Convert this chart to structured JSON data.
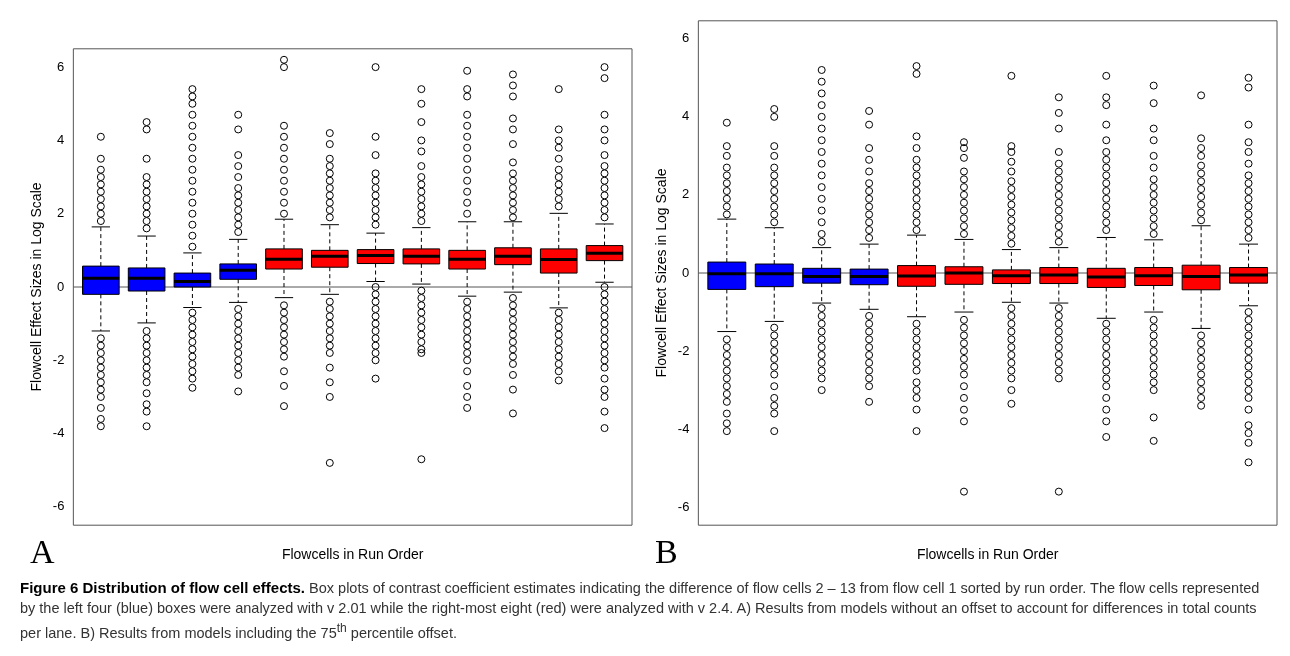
{
  "chart_data": [
    {
      "type": "box",
      "xlabel": "Flowcells in Run Order",
      "ylabel": "Flowcell Effect Sizes in Log Scale",
      "categories": [
        null,
        null,
        null,
        null,
        null,
        null,
        null,
        null,
        null,
        null,
        null,
        null
      ],
      "colors": [
        "#0000ff",
        "#0000ff",
        "#0000ff",
        "#0000ff",
        "#ff0000",
        "#ff0000",
        "#ff0000",
        "#ff0000",
        "#ff0000",
        "#ff0000",
        "#ff0000",
        "#ff0000"
      ],
      "boxes": [
        {
          "low": -1.2,
          "q1": -0.2,
          "median": 0.24,
          "q3": 0.57,
          "high": 1.64,
          "outliers": [
            1.8,
            2.0,
            2.2,
            2.4,
            2.6,
            2.8,
            3.0,
            3.2,
            3.5,
            4.1,
            -1.4,
            -1.6,
            -1.8,
            -2.0,
            -2.2,
            -2.4,
            -2.6,
            -2.8,
            -3.0,
            -3.3,
            -3.6,
            -3.8
          ]
        },
        {
          "low": -0.98,
          "q1": -0.11,
          "median": 0.24,
          "q3": 0.52,
          "high": 1.39,
          "outliers": [
            1.6,
            1.8,
            2.0,
            2.2,
            2.4,
            2.6,
            2.8,
            3.0,
            3.5,
            4.3,
            4.5,
            -1.2,
            -1.4,
            -1.6,
            -1.8,
            -2.0,
            -2.2,
            -2.4,
            -2.6,
            -2.9,
            -3.2,
            -3.4,
            -3.8
          ]
        },
        {
          "low": -0.56,
          "q1": 0.0,
          "median": 0.15,
          "q3": 0.38,
          "high": 0.93,
          "outliers": [
            1.1,
            1.4,
            1.7,
            2.0,
            2.3,
            2.6,
            2.9,
            3.2,
            3.5,
            3.8,
            4.1,
            4.4,
            4.7,
            5.0,
            5.2,
            5.4,
            -0.7,
            -0.9,
            -1.1,
            -1.3,
            -1.5,
            -1.7,
            -1.9,
            -2.1,
            -2.3,
            -2.5,
            -2.75
          ]
        },
        {
          "low": -0.42,
          "q1": 0.21,
          "median": 0.46,
          "q3": 0.63,
          "high": 1.3,
          "outliers": [
            1.5,
            1.7,
            1.9,
            2.1,
            2.3,
            2.5,
            2.7,
            3.0,
            3.3,
            3.6,
            4.3,
            4.7,
            -0.6,
            -0.8,
            -1.0,
            -1.2,
            -1.4,
            -1.6,
            -1.8,
            -2.0,
            -2.2,
            -2.4,
            -2.85
          ]
        },
        {
          "low": -0.29,
          "q1": 0.49,
          "median": 0.76,
          "q3": 1.04,
          "high": 1.85,
          "outliers": [
            2.0,
            2.3,
            2.6,
            2.9,
            3.2,
            3.5,
            3.8,
            4.1,
            4.4,
            6.0,
            6.2,
            -0.5,
            -0.7,
            -0.9,
            -1.1,
            -1.3,
            -1.5,
            -1.7,
            -1.9,
            -2.3,
            -2.7,
            -3.25
          ]
        },
        {
          "low": -0.2,
          "q1": 0.54,
          "median": 0.84,
          "q3": 1.0,
          "high": 1.7,
          "outliers": [
            1.9,
            2.1,
            2.3,
            2.5,
            2.7,
            2.9,
            3.1,
            3.3,
            3.5,
            3.9,
            4.2,
            -0.4,
            -0.6,
            -0.8,
            -1.0,
            -1.2,
            -1.4,
            -1.6,
            -1.8,
            -2.2,
            -2.6,
            -3.0,
            -4.8
          ]
        },
        {
          "low": 0.15,
          "q1": 0.64,
          "median": 0.86,
          "q3": 1.02,
          "high": 1.47,
          "outliers": [
            1.7,
            1.9,
            2.1,
            2.3,
            2.5,
            2.7,
            2.9,
            3.1,
            3.6,
            4.1,
            6.0,
            0.0,
            -0.2,
            -0.4,
            -0.6,
            -0.8,
            -1.0,
            -1.2,
            -1.4,
            -1.6,
            -1.8,
            -2.0,
            -2.5
          ]
        },
        {
          "low": 0.08,
          "q1": 0.63,
          "median": 0.84,
          "q3": 1.04,
          "high": 1.62,
          "outliers": [
            1.8,
            2.0,
            2.2,
            2.4,
            2.6,
            2.8,
            3.0,
            3.3,
            3.7,
            4.0,
            4.5,
            5.0,
            5.4,
            -0.1,
            -0.3,
            -0.5,
            -0.7,
            -0.9,
            -1.1,
            -1.3,
            -1.5,
            -1.7,
            -1.8,
            -4.7
          ]
        },
        {
          "low": -0.25,
          "q1": 0.49,
          "median": 0.76,
          "q3": 1.0,
          "high": 1.78,
          "outliers": [
            2.0,
            2.3,
            2.6,
            2.9,
            3.2,
            3.5,
            3.8,
            4.1,
            4.4,
            4.7,
            5.2,
            5.4,
            5.9,
            -0.4,
            -0.6,
            -0.8,
            -1.0,
            -1.2,
            -1.4,
            -1.6,
            -1.8,
            -2.0,
            -2.3,
            -2.7,
            -3.0,
            -3.3
          ]
        },
        {
          "low": -0.14,
          "q1": 0.61,
          "median": 0.84,
          "q3": 1.07,
          "high": 1.78,
          "outliers": [
            1.9,
            2.1,
            2.3,
            2.5,
            2.7,
            2.9,
            3.1,
            3.4,
            3.9,
            4.3,
            4.6,
            5.2,
            5.5,
            5.8,
            -0.3,
            -0.5,
            -0.7,
            -0.9,
            -1.1,
            -1.3,
            -1.5,
            -1.7,
            -1.9,
            -2.1,
            -2.4,
            -2.8,
            -3.45
          ]
        },
        {
          "low": -0.57,
          "q1": 0.38,
          "median": 0.75,
          "q3": 1.04,
          "high": 2.01,
          "outliers": [
            2.2,
            2.4,
            2.6,
            2.8,
            3.0,
            3.2,
            3.5,
            3.8,
            4.0,
            4.3,
            5.4,
            -0.7,
            -0.9,
            -1.1,
            -1.3,
            -1.5,
            -1.7,
            -1.9,
            -2.1,
            -2.3,
            -2.55
          ]
        },
        {
          "low": 0.13,
          "q1": 0.72,
          "median": 0.92,
          "q3": 1.13,
          "high": 1.72,
          "outliers": [
            1.9,
            2.1,
            2.3,
            2.5,
            2.7,
            2.9,
            3.1,
            3.3,
            3.6,
            4.0,
            4.3,
            4.7,
            5.7,
            6.0,
            0.0,
            -0.2,
            -0.4,
            -0.6,
            -0.8,
            -1.0,
            -1.2,
            -1.4,
            -1.6,
            -1.8,
            -2.0,
            -2.2,
            -2.5,
            -2.8,
            -3.0,
            -3.4,
            -3.85
          ]
        }
      ],
      "ylim": [
        -6.5,
        6.5
      ],
      "yticks": [
        -6,
        -4,
        -2,
        0,
        2,
        4,
        6
      ],
      "tick_labels": "y",
      "grid": false,
      "legend": false,
      "marker": "circle",
      "ref_lines": [
        {
          "axis": "y",
          "value": 0,
          "color": "#555555"
        }
      ],
      "annotations": [
        "A",
        "Figure 6 Distribution of flow cell effects.",
        "Box plots of contrast coefficient estimates indicating the difference of flow cells 2 – 13 from flow cell 1 sorted by run order. The flow cells represented by the left four (blue) boxes were analyzed with v 2.01 while the right-most eight (red) were analyzed with v 2.4. A) Results from models without an offset to account for differences in total counts per lane. B) Results from models including the 75$^{th}$ percentile offset."
      ]
    },
    {
      "type": "box",
      "xlabel": "Flowcells in Run Order",
      "ylabel": "Flowcell Effect Sizes in Log Scale",
      "categories": [
        null,
        null,
        null,
        null,
        null,
        null,
        null,
        null,
        null,
        null,
        null,
        null
      ],
      "colors": [
        "#0000ff",
        "#0000ff",
        "#0000ff",
        "#0000ff",
        "#ff0000",
        "#ff0000",
        "#ff0000",
        "#ff0000",
        "#ff0000",
        "#ff0000",
        "#ff0000",
        "#ff0000"
      ],
      "boxes": [
        {
          "low": -1.5,
          "q1": -0.42,
          "median": -0.02,
          "q3": 0.28,
          "high": 1.38,
          "outliers": [
            1.5,
            1.7,
            1.9,
            2.1,
            2.3,
            2.5,
            2.7,
            3.0,
            3.25,
            3.85,
            -1.7,
            -1.9,
            -2.1,
            -2.3,
            -2.5,
            -2.7,
            -2.9,
            -3.1,
            -3.3,
            -3.6,
            -3.85,
            -4.05
          ]
        },
        {
          "low": -1.24,
          "q1": -0.35,
          "median": -0.02,
          "q3": 0.23,
          "high": 1.16,
          "outliers": [
            1.3,
            1.5,
            1.7,
            1.9,
            2.1,
            2.3,
            2.5,
            2.7,
            3.0,
            3.25,
            4.0,
            4.2,
            -1.4,
            -1.6,
            -1.8,
            -2.0,
            -2.2,
            -2.4,
            -2.6,
            -2.9,
            -3.2,
            -3.4,
            -3.6,
            -4.05
          ]
        },
        {
          "low": -0.77,
          "q1": -0.26,
          "median": -0.09,
          "q3": 0.12,
          "high": 0.65,
          "outliers": [
            0.8,
            1.0,
            1.3,
            1.6,
            1.9,
            2.2,
            2.5,
            2.8,
            3.1,
            3.4,
            3.7,
            4.0,
            4.3,
            4.6,
            4.9,
            5.2,
            -0.9,
            -1.1,
            -1.3,
            -1.5,
            -1.7,
            -1.9,
            -2.1,
            -2.3,
            -2.5,
            -2.7,
            -3.0
          ]
        },
        {
          "low": -0.93,
          "q1": -0.3,
          "median": -0.09,
          "q3": 0.1,
          "high": 0.74,
          "outliers": [
            0.9,
            1.1,
            1.3,
            1.5,
            1.7,
            1.9,
            2.1,
            2.3,
            2.6,
            2.9,
            3.2,
            3.8,
            4.15,
            -1.1,
            -1.3,
            -1.5,
            -1.7,
            -1.9,
            -2.1,
            -2.3,
            -2.5,
            -2.7,
            -2.9,
            -3.3
          ]
        },
        {
          "low": -1.12,
          "q1": -0.34,
          "median": -0.08,
          "q3": 0.19,
          "high": 0.97,
          "outliers": [
            1.1,
            1.3,
            1.5,
            1.7,
            1.9,
            2.1,
            2.3,
            2.5,
            2.7,
            2.9,
            3.2,
            3.5,
            5.1,
            5.3,
            -1.3,
            -1.5,
            -1.7,
            -1.9,
            -2.1,
            -2.3,
            -2.5,
            -2.8,
            -3.0,
            -3.2,
            -3.5,
            -4.05
          ]
        },
        {
          "low": -1.0,
          "q1": -0.29,
          "median": 0.0,
          "q3": 0.16,
          "high": 0.86,
          "outliers": [
            1.0,
            1.2,
            1.4,
            1.6,
            1.8,
            2.0,
            2.2,
            2.4,
            2.6,
            2.95,
            3.2,
            3.35,
            -1.2,
            -1.4,
            -1.6,
            -1.8,
            -2.0,
            -2.2,
            -2.4,
            -2.6,
            -2.9,
            -3.2,
            -3.5,
            -3.8,
            -5.6
          ]
        },
        {
          "low": -0.75,
          "q1": -0.27,
          "median": -0.07,
          "q3": 0.08,
          "high": 0.6,
          "outliers": [
            0.75,
            0.95,
            1.15,
            1.35,
            1.55,
            1.75,
            1.95,
            2.15,
            2.35,
            2.6,
            2.85,
            3.1,
            3.25,
            5.05,
            -0.9,
            -1.1,
            -1.3,
            -1.5,
            -1.7,
            -1.9,
            -2.1,
            -2.3,
            -2.5,
            -2.7,
            -3.0,
            -3.35
          ]
        },
        {
          "low": -0.77,
          "q1": -0.27,
          "median": -0.05,
          "q3": 0.14,
          "high": 0.65,
          "outliers": [
            0.8,
            1.0,
            1.2,
            1.4,
            1.6,
            1.8,
            2.0,
            2.2,
            2.4,
            2.6,
            2.8,
            3.1,
            3.7,
            4.1,
            4.5,
            -0.9,
            -1.1,
            -1.3,
            -1.5,
            -1.7,
            -1.9,
            -2.1,
            -2.3,
            -2.5,
            -2.7,
            -5.6
          ]
        },
        {
          "low": -1.16,
          "q1": -0.37,
          "median": -0.1,
          "q3": 0.12,
          "high": 0.91,
          "outliers": [
            1.1,
            1.3,
            1.5,
            1.7,
            1.9,
            2.1,
            2.3,
            2.5,
            2.7,
            2.9,
            3.1,
            3.4,
            3.8,
            4.3,
            4.5,
            5.05,
            -1.3,
            -1.5,
            -1.7,
            -1.9,
            -2.1,
            -2.3,
            -2.5,
            -2.7,
            -2.9,
            -3.2,
            -3.5,
            -3.8,
            -4.2
          ]
        },
        {
          "low": -1.0,
          "q1": -0.32,
          "median": -0.07,
          "q3": 0.14,
          "high": 0.85,
          "outliers": [
            1.0,
            1.2,
            1.4,
            1.6,
            1.8,
            2.0,
            2.2,
            2.4,
            2.7,
            3.0,
            3.4,
            3.7,
            4.35,
            4.8,
            -1.2,
            -1.4,
            -1.6,
            -1.8,
            -2.0,
            -2.2,
            -2.4,
            -2.6,
            -2.8,
            -3.0,
            -3.7,
            -4.3
          ]
        },
        {
          "low": -1.42,
          "q1": -0.43,
          "median": -0.09,
          "q3": 0.2,
          "high": 1.21,
          "outliers": [
            1.35,
            1.55,
            1.75,
            1.95,
            2.15,
            2.35,
            2.55,
            2.75,
            3.0,
            3.2,
            3.45,
            4.55,
            -1.6,
            -1.8,
            -2.0,
            -2.2,
            -2.4,
            -2.6,
            -2.8,
            -3.0,
            -3.2,
            -3.4
          ]
        },
        {
          "low": -0.84,
          "q1": -0.26,
          "median": -0.05,
          "q3": 0.14,
          "high": 0.74,
          "outliers": [
            0.9,
            1.1,
            1.3,
            1.5,
            1.7,
            1.9,
            2.1,
            2.3,
            2.5,
            2.8,
            3.1,
            3.35,
            3.8,
            4.75,
            5.0,
            -1.0,
            -1.2,
            -1.4,
            -1.6,
            -1.8,
            -2.0,
            -2.2,
            -2.4,
            -2.6,
            -2.8,
            -3.0,
            -3.2,
            -3.5,
            -3.9,
            -4.1,
            -4.35,
            -4.85
          ]
        }
      ],
      "ylim": [
        -6.46,
        6.46
      ],
      "yticks": [
        -6,
        -4,
        -2,
        0,
        2,
        4,
        6
      ],
      "tick_labels": "y",
      "grid": false,
      "legend": false,
      "marker": "circle",
      "ref_lines": [
        {
          "axis": "y",
          "value": 0,
          "color": "#555555"
        }
      ],
      "annotations": [
        "B"
      ]
    }
  ]
}
